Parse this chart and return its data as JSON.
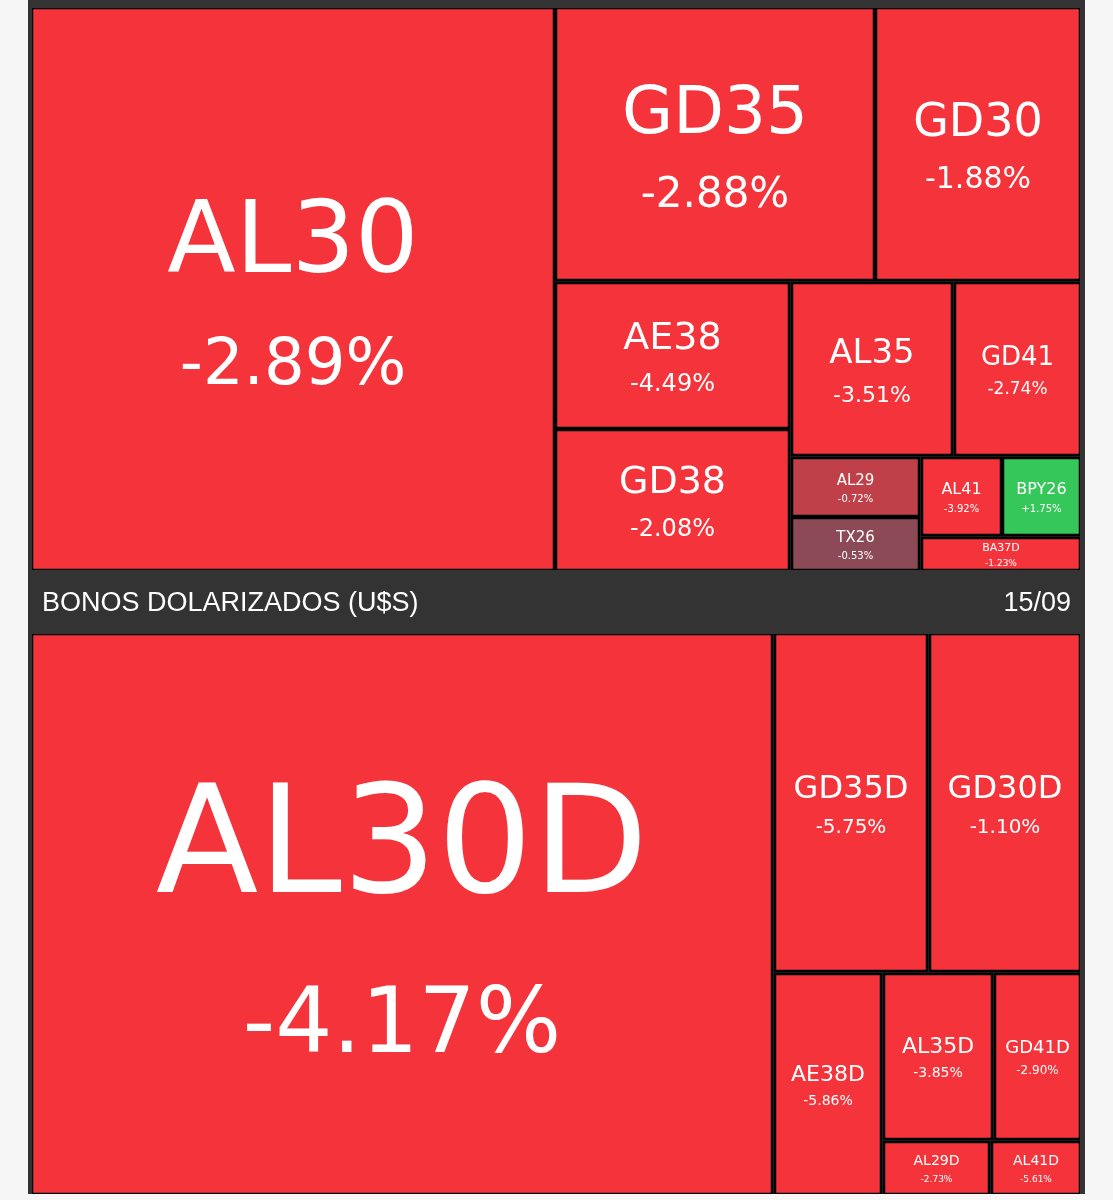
{
  "chart_data": [
    {
      "type": "other",
      "categories": [
        "AL30",
        "GD35",
        "GD30",
        "AE38",
        "GD38",
        "AL35",
        "GD41",
        "AL29",
        "TX26",
        "AL41",
        "BPY26",
        "BA37D"
      ],
      "values": [
        -2.89,
        -2.88,
        -1.88,
        -4.49,
        -2.08,
        -3.51,
        -2.74,
        -0.72,
        -0.53,
        -3.92,
        1.75,
        -1.23
      ],
      "value_labels": [
        "-2.89%",
        "-2.88%",
        "-1.88%",
        "-4.49%",
        "-2.08%",
        "-3.51%",
        "-2.74%",
        "-0.72%",
        "-0.53%",
        "-3.92%",
        "+1.75%",
        "-1.23%"
      ],
      "colors": [
        "#f5333b",
        "#f5333b",
        "#f5333b",
        "#f5333b",
        "#f5333b",
        "#f5333b",
        "#f5333b",
        "#bf4048",
        "#8b4a55",
        "#f5333b",
        "#35c759",
        "#f5333b"
      ]
    },
    {
      "type": "other",
      "title": "BONOS DOLARIZADOS (U$S)",
      "subtitle": "15/09",
      "categories": [
        "AL30D",
        "GD35D",
        "GD30D",
        "AE38D",
        "AL35D",
        "GD41D",
        "AL29D",
        "AL41D"
      ],
      "values": [
        -4.17,
        -5.75,
        -1.1,
        -5.86,
        -3.85,
        -2.9,
        -2.73,
        -5.61
      ],
      "value_labels": [
        "-4.17%",
        "-5.75%",
        "-1.10%",
        "-5.86%",
        "-3.85%",
        "-2.90%",
        "-2.73%",
        "-5.61%"
      ],
      "colors": [
        "#f5333b",
        "#f5333b",
        "#f5333b",
        "#f5333b",
        "#f5333b",
        "#f5333b",
        "#f5333b",
        "#f5333b"
      ]
    }
  ]
}
